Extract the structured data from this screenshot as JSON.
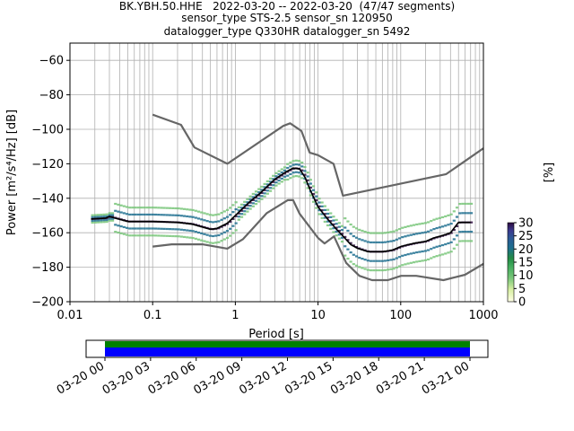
{
  "header": {
    "line1": "BK.YBH.50.HHE   2022-03-20 -- 2022-03-20  (47/47 segments)",
    "line2": "sensor_type STS-2.5 sensor_sn 120950",
    "line3": "datalogger_type Q330HR datalogger_sn 5492"
  },
  "chart_data": {
    "type": "heatmap",
    "subtype": "probabilistic power spectral density",
    "xlabel": "Period [s]",
    "ylabel": "Power [m²/s⁴/Hz] [dB]",
    "xscale": "log",
    "xlim": [
      0.01,
      1000
    ],
    "ylim": [
      -200,
      -50
    ],
    "x_tick_labels": [
      "0.01",
      "0.1",
      "1",
      "10",
      "100",
      "1000"
    ],
    "y_ticks": [
      -60,
      -80,
      -100,
      -120,
      -140,
      -160,
      -180,
      -200
    ],
    "grid": true,
    "colorbar": {
      "label": "[%]",
      "ticks": [
        0,
        5,
        10,
        15,
        20,
        25,
        30
      ],
      "range": [
        0,
        30
      ],
      "colors": [
        "#ffffe5",
        "#d9f0a3",
        "#78c679",
        "#41ab5d",
        "#238b45",
        "#1d6f8f",
        "#2c5a96",
        "#3b3a8f",
        "#2d0a3f"
      ]
    },
    "series": [
      {
        "kind": "noise model high",
        "color": "#666666",
        "x": [
          0.1,
          0.22,
          0.32,
          0.8,
          3.8,
          4.6,
          6.3,
          7.9,
          10,
          15.4,
          20,
          354.8,
          1000
        ],
        "y": [
          -91.5,
          -97.4,
          -110.5,
          -120,
          -98,
          -96.5,
          -101,
          -113.5,
          -115,
          -120,
          -138.5,
          -126,
          -111
        ]
      },
      {
        "kind": "noise model low",
        "color": "#666666",
        "x": [
          0.1,
          0.17,
          0.4,
          0.8,
          1.24,
          2.4,
          4.3,
          5,
          6,
          10,
          12,
          15.6,
          21.9,
          31.6,
          45,
          70,
          101,
          154,
          328,
          600,
          1000
        ],
        "y": [
          -168,
          -166.7,
          -166.7,
          -169.2,
          -163.7,
          -148.6,
          -141.1,
          -141.1,
          -149,
          -163,
          -166.2,
          -162.1,
          -177.5,
          -185,
          -187.5,
          -187.5,
          -185,
          -185,
          -187.5,
          -184.4,
          -178
        ]
      },
      {
        "kind": "mode",
        "color": "#000000",
        "x": [
          0.018,
          0.027,
          0.03,
          0.035,
          0.05,
          0.1,
          0.2,
          0.3,
          0.5,
          0.6,
          0.8,
          1,
          1.5,
          2,
          3,
          4,
          5,
          6,
          7,
          8,
          10,
          13,
          16,
          20,
          25,
          30,
          40,
          50,
          60,
          70,
          80,
          100,
          120,
          150,
          200,
          250,
          300,
          350,
          400,
          500,
          700
        ],
        "y": [
          -152,
          -151.5,
          -150.5,
          -151.5,
          -153.5,
          -153.5,
          -154,
          -155,
          -158,
          -157.5,
          -154.5,
          -150,
          -142,
          -137,
          -129,
          -125,
          -122.5,
          -123,
          -128,
          -135,
          -145,
          -152,
          -157,
          -162,
          -167,
          -169,
          -171,
          -171,
          -171,
          -170.5,
          -170,
          -168,
          -167,
          -166,
          -165,
          -163,
          -162,
          -161,
          -160,
          -154,
          -154
        ]
      }
    ]
  },
  "timeline": {
    "tick_labels": [
      "03-20 00",
      "03-20 03",
      "03-20 06",
      "03-20 09",
      "03-20 12",
      "03-20 15",
      "03-20 18",
      "03-20 21",
      "03-21 00"
    ],
    "coverage_colors": [
      "#008000",
      "#0000ff"
    ]
  }
}
